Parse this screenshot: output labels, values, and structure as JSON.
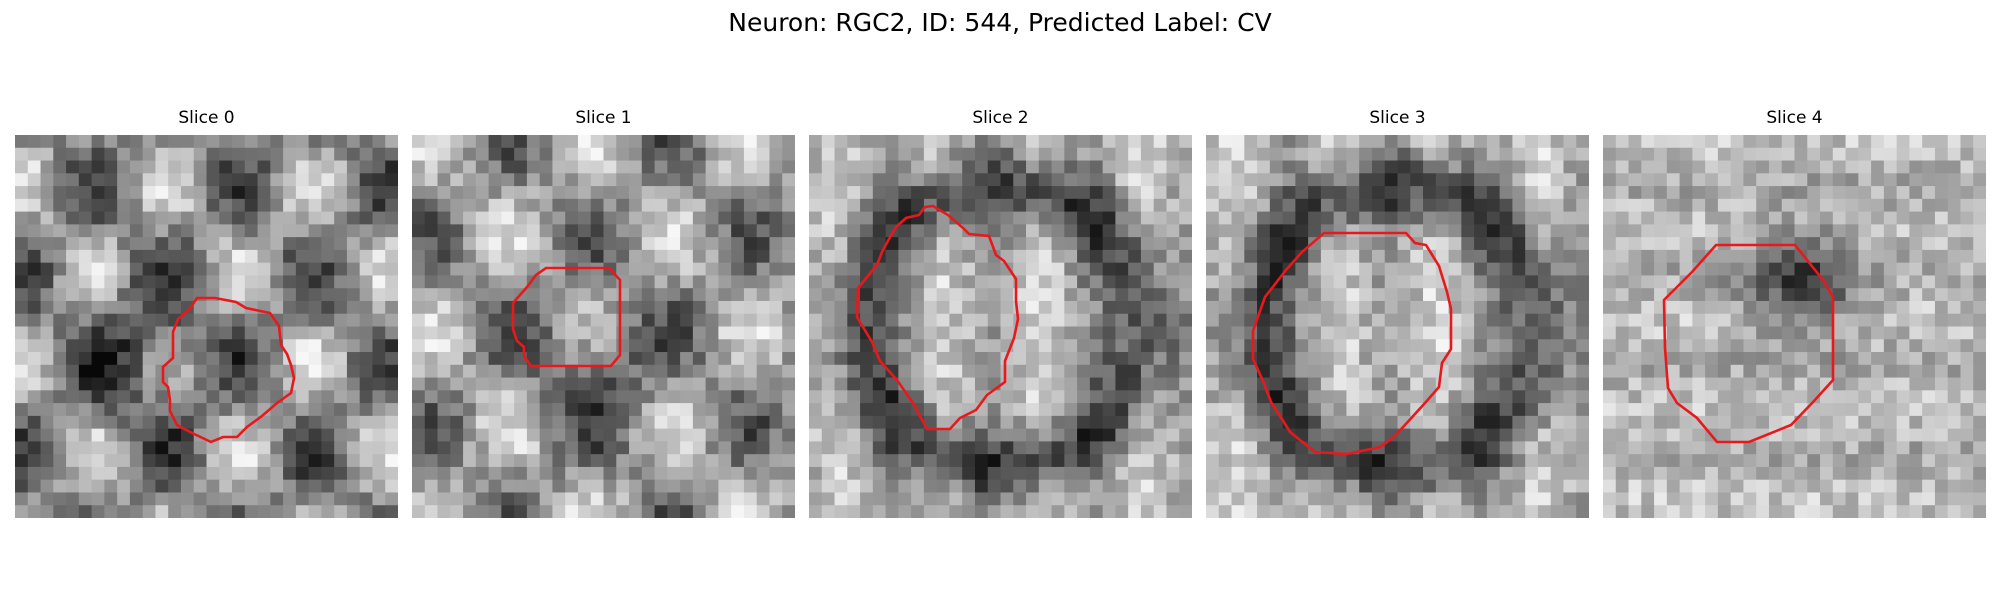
{
  "figure": {
    "title": "Neuron: RGC2, ID: 544, Predicted Label: CV",
    "contour_color": "#e8191c",
    "colormap": "gray"
  },
  "slices": [
    {
      "title": "Slice 0",
      "seed": 11,
      "pattern": "ring_dark"
    },
    {
      "title": "Slice 1",
      "seed": 23,
      "pattern": "blobs"
    },
    {
      "title": "Slice 2",
      "seed": 37,
      "pattern": "ring_light"
    },
    {
      "title": "Slice 3",
      "seed": 41,
      "pattern": "ring_light"
    },
    {
      "title": "Slice 4",
      "seed": 59,
      "pattern": "dark_center"
    }
  ]
}
